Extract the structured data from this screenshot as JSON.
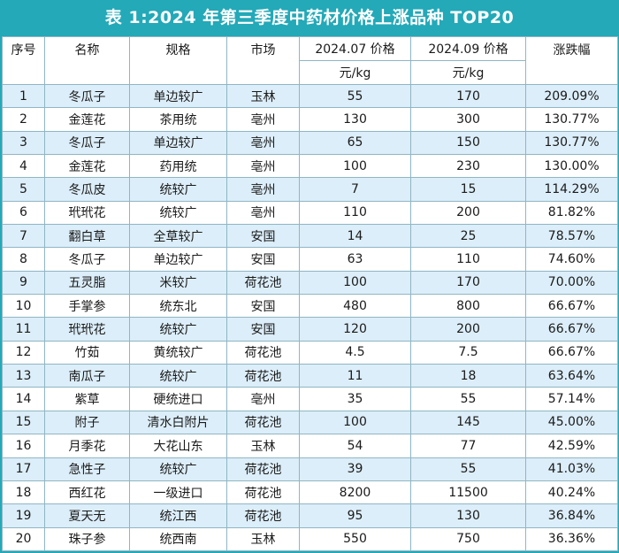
{
  "title": "表 1:2024 年第三季度中药材价格上涨品种 TOP20",
  "headers": {
    "index": "序号",
    "name": "名称",
    "spec": "规格",
    "market": "市场",
    "price_jul": "2024.07 价格",
    "price_sep": "2024.09 价格",
    "unit_jul": "元/kg",
    "unit_sep": "元/kg",
    "change": "涨跌幅"
  },
  "rows": [
    {
      "index": "1",
      "name": "冬瓜子",
      "spec": "单边较广",
      "market": "玉林",
      "price_jul": "55",
      "price_sep": "170",
      "change": "209.09%"
    },
    {
      "index": "2",
      "name": "金莲花",
      "spec": "茶用统",
      "market": "亳州",
      "price_jul": "130",
      "price_sep": "300",
      "change": "130.77%"
    },
    {
      "index": "3",
      "name": "冬瓜子",
      "spec": "单边较广",
      "market": "亳州",
      "price_jul": "65",
      "price_sep": "150",
      "change": "130.77%"
    },
    {
      "index": "4",
      "name": "金莲花",
      "spec": "药用统",
      "market": "亳州",
      "price_jul": "100",
      "price_sep": "230",
      "change": "130.00%"
    },
    {
      "index": "5",
      "name": "冬瓜皮",
      "spec": "统较广",
      "market": "亳州",
      "price_jul": "7",
      "price_sep": "15",
      "change": "114.29%"
    },
    {
      "index": "6",
      "name": "玳玳花",
      "spec": "统较广",
      "market": "亳州",
      "price_jul": "110",
      "price_sep": "200",
      "change": "81.82%"
    },
    {
      "index": "7",
      "name": "翻白草",
      "spec": "全草较广",
      "market": "安国",
      "price_jul": "14",
      "price_sep": "25",
      "change": "78.57%"
    },
    {
      "index": "8",
      "name": "冬瓜子",
      "spec": "单边较广",
      "market": "安国",
      "price_jul": "63",
      "price_sep": "110",
      "change": "74.60%"
    },
    {
      "index": "9",
      "name": "五灵脂",
      "spec": "米较广",
      "market": "荷花池",
      "price_jul": "100",
      "price_sep": "170",
      "change": "70.00%"
    },
    {
      "index": "10",
      "name": "手掌参",
      "spec": "统东北",
      "market": "安国",
      "price_jul": "480",
      "price_sep": "800",
      "change": "66.67%"
    },
    {
      "index": "11",
      "name": "玳玳花",
      "spec": "统较广",
      "market": "安国",
      "price_jul": "120",
      "price_sep": "200",
      "change": "66.67%"
    },
    {
      "index": "12",
      "name": "竹茹",
      "spec": "黄统较广",
      "market": "荷花池",
      "price_jul": "4.5",
      "price_sep": "7.5",
      "change": "66.67%"
    },
    {
      "index": "13",
      "name": "南瓜子",
      "spec": "统较广",
      "market": "荷花池",
      "price_jul": "11",
      "price_sep": "18",
      "change": "63.64%"
    },
    {
      "index": "14",
      "name": "紫草",
      "spec": "硬统进口",
      "market": "亳州",
      "price_jul": "35",
      "price_sep": "55",
      "change": "57.14%"
    },
    {
      "index": "15",
      "name": "附子",
      "spec": "清水白附片",
      "market": "荷花池",
      "price_jul": "100",
      "price_sep": "145",
      "change": "45.00%"
    },
    {
      "index": "16",
      "name": "月季花",
      "spec": "大花山东",
      "market": "玉林",
      "price_jul": "54",
      "price_sep": "77",
      "change": "42.59%"
    },
    {
      "index": "17",
      "name": "急性子",
      "spec": "统较广",
      "market": "荷花池",
      "price_jul": "39",
      "price_sep": "55",
      "change": "41.03%"
    },
    {
      "index": "18",
      "name": "西红花",
      "spec": "一级进口",
      "market": "荷花池",
      "price_jul": "8200",
      "price_sep": "11500",
      "change": "40.24%"
    },
    {
      "index": "19",
      "name": "夏天无",
      "spec": "统江西",
      "market": "荷花池",
      "price_jul": "95",
      "price_sep": "130",
      "change": "36.84%"
    },
    {
      "index": "20",
      "name": "珠子参",
      "spec": "统西南",
      "market": "玉林",
      "price_jul": "550",
      "price_sep": "750",
      "change": "36.36%"
    }
  ]
}
